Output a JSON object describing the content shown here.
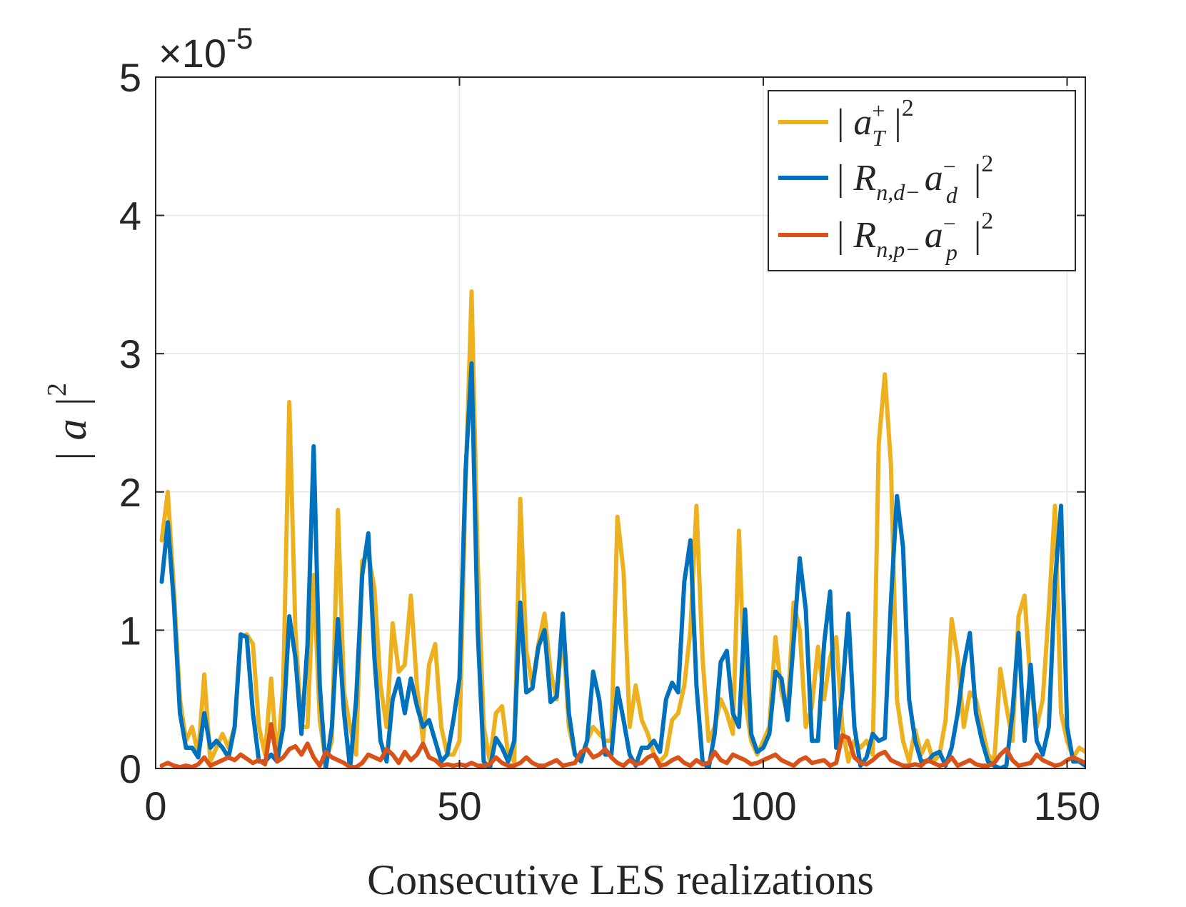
{
  "chart_data": {
    "type": "line",
    "title": "",
    "xlabel": "Consecutive LES realizations",
    "ylabel": "| a |",
    "ylabel_exponent": "2",
    "y_multiplier": "×10",
    "y_multiplier_exponent": "-5",
    "xlim": [
      0,
      153
    ],
    "ylim": [
      0,
      5
    ],
    "xticks": [
      0,
      50,
      100,
      150
    ],
    "xtick_labels": [
      "0",
      "50",
      "100",
      "150"
    ],
    "yticks": [
      0,
      1,
      2,
      3,
      4,
      5
    ],
    "ytick_labels": [
      "0",
      "1",
      "2",
      "3",
      "4",
      "5"
    ],
    "grid": true,
    "legend_position": "top-right",
    "series": [
      {
        "name": "| a_T^+ |^2",
        "legend": {
          "base": "a",
          "sub": "T",
          "sup": "+"
        },
        "color": "#EDB120",
        "x": [
          1,
          2,
          3,
          4,
          5,
          6,
          7,
          8,
          9,
          10,
          11,
          12,
          13,
          14,
          15,
          16,
          17,
          18,
          19,
          20,
          21,
          22,
          23,
          24,
          25,
          26,
          27,
          28,
          29,
          30,
          31,
          32,
          33,
          34,
          35,
          36,
          37,
          38,
          39,
          40,
          41,
          42,
          43,
          44,
          45,
          46,
          47,
          48,
          49,
          50,
          51,
          52,
          53,
          54,
          55,
          56,
          57,
          58,
          59,
          60,
          61,
          62,
          63,
          64,
          65,
          66,
          67,
          68,
          69,
          70,
          71,
          72,
          73,
          74,
          75,
          76,
          77,
          78,
          79,
          80,
          81,
          82,
          83,
          84,
          85,
          86,
          87,
          88,
          89,
          90,
          91,
          92,
          93,
          94,
          95,
          96,
          97,
          98,
          99,
          100,
          101,
          102,
          103,
          104,
          105,
          106,
          107,
          108,
          109,
          110,
          111,
          112,
          113,
          114,
          115,
          116,
          117,
          118,
          119,
          120,
          121,
          122,
          123,
          124,
          125,
          126,
          127,
          128,
          129,
          130,
          131,
          132,
          133,
          134,
          135,
          136,
          137,
          138,
          139,
          140,
          141,
          142,
          143,
          144,
          145,
          146,
          147,
          148,
          149,
          150,
          151,
          152,
          153
        ],
        "values": [
          1.65,
          2.0,
          1.3,
          0.5,
          0.2,
          0.3,
          0.1,
          0.68,
          0.05,
          0.15,
          0.25,
          0.15,
          0.3,
          0.95,
          0.97,
          0.9,
          0.3,
          0.1,
          0.65,
          0.05,
          0.6,
          2.65,
          1.0,
          0.3,
          0.3,
          1.4,
          0.35,
          0.05,
          0.2,
          1.87,
          0.55,
          0.3,
          0.1,
          1.5,
          1.55,
          1.3,
          0.6,
          0.3,
          1.05,
          0.7,
          0.75,
          1.25,
          0.6,
          0.2,
          0.75,
          0.9,
          0.3,
          0.1,
          0.1,
          0.2,
          2.05,
          3.45,
          1.5,
          0.3,
          0.05,
          0.4,
          0.45,
          0.1,
          0.05,
          1.95,
          0.85,
          0.6,
          0.9,
          1.12,
          0.7,
          0.5,
          1.0,
          0.3,
          0.1,
          0.08,
          0.2,
          0.3,
          0.25,
          0.2,
          0.2,
          1.82,
          1.42,
          0.3,
          0.6,
          0.35,
          0.25,
          0.1,
          0.05,
          0.1,
          0.35,
          0.4,
          0.6,
          1.0,
          1.9,
          0.8,
          0.2,
          0.3,
          0.5,
          0.4,
          0.25,
          1.72,
          0.5,
          0.2,
          0.1,
          0.2,
          0.3,
          0.95,
          0.55,
          0.4,
          1.2,
          1.0,
          0.3,
          0.45,
          0.88,
          0.5,
          0.8,
          0.95,
          0.3,
          0.05,
          0.2,
          0.15,
          0.2,
          0.1,
          2.35,
          2.85,
          2.2,
          0.5,
          0.2,
          0.05,
          0.28,
          0.1,
          0.2,
          0.05,
          0.1,
          0.35,
          1.08,
          0.8,
          0.3,
          0.55,
          0.5,
          0.3,
          0.1,
          0.05,
          0.72,
          0.45,
          0.2,
          1.1,
          1.25,
          0.6,
          0.3,
          0.5,
          1.15,
          1.9,
          0.4,
          0.2,
          0.08,
          0.15,
          0.12
        ],
        "line_width": 6
      },
      {
        "name": "| R_{n,d-} a_d^- |^2",
        "legend": {
          "base": "R",
          "sub": "n,d−",
          "base2": "a",
          "sub2": "d",
          "sup2": "−"
        },
        "color": "#0072BD",
        "x": [
          1,
          2,
          3,
          4,
          5,
          6,
          7,
          8,
          9,
          10,
          11,
          12,
          13,
          14,
          15,
          16,
          17,
          18,
          19,
          20,
          21,
          22,
          23,
          24,
          25,
          26,
          27,
          28,
          29,
          30,
          31,
          32,
          33,
          34,
          35,
          36,
          37,
          38,
          39,
          40,
          41,
          42,
          43,
          44,
          45,
          46,
          47,
          48,
          49,
          50,
          51,
          52,
          53,
          54,
          55,
          56,
          57,
          58,
          59,
          60,
          61,
          62,
          63,
          64,
          65,
          66,
          67,
          68,
          69,
          70,
          71,
          72,
          73,
          74,
          75,
          76,
          77,
          78,
          79,
          80,
          81,
          82,
          83,
          84,
          85,
          86,
          87,
          88,
          89,
          90,
          91,
          92,
          93,
          94,
          95,
          96,
          97,
          98,
          99,
          100,
          101,
          102,
          103,
          104,
          105,
          106,
          107,
          108,
          109,
          110,
          111,
          112,
          113,
          114,
          115,
          116,
          117,
          118,
          119,
          120,
          121,
          122,
          123,
          124,
          125,
          126,
          127,
          128,
          129,
          130,
          131,
          132,
          133,
          134,
          135,
          136,
          137,
          138,
          139,
          140,
          141,
          142,
          143,
          144,
          145,
          146,
          147,
          148,
          149,
          150,
          151,
          152,
          153
        ],
        "values": [
          1.35,
          1.78,
          1.2,
          0.4,
          0.15,
          0.15,
          0.08,
          0.4,
          0.15,
          0.2,
          0.15,
          0.08,
          0.3,
          0.97,
          0.95,
          0.4,
          0.05,
          0.05,
          0.1,
          0.05,
          0.3,
          1.1,
          0.8,
          0.25,
          0.9,
          2.33,
          0.6,
          0.0,
          0.3,
          1.08,
          0.4,
          0.0,
          0.5,
          1.4,
          1.7,
          0.8,
          0.2,
          0.05,
          0.5,
          0.65,
          0.4,
          0.65,
          0.45,
          0.3,
          0.35,
          0.2,
          0.05,
          0.1,
          0.35,
          0.65,
          2.15,
          2.93,
          1.0,
          0.05,
          0.0,
          0.22,
          0.15,
          0.05,
          0.2,
          1.2,
          0.55,
          0.58,
          0.88,
          1.0,
          0.48,
          0.52,
          1.12,
          0.4,
          0.1,
          0.05,
          0.2,
          0.7,
          0.5,
          0.1,
          0.1,
          0.58,
          0.35,
          0.1,
          0.02,
          0.15,
          0.15,
          0.2,
          0.12,
          0.5,
          0.62,
          0.55,
          1.35,
          1.65,
          0.6,
          0.05,
          0.0,
          0.25,
          0.77,
          0.85,
          0.4,
          0.3,
          1.15,
          0.25,
          0.12,
          0.15,
          0.25,
          0.7,
          0.65,
          0.35,
          0.92,
          1.52,
          1.15,
          0.2,
          0.2,
          0.9,
          1.28,
          0.15,
          0.55,
          1.12,
          0.3,
          0.02,
          0.08,
          0.25,
          0.2,
          0.22,
          1.2,
          1.97,
          1.6,
          0.5,
          0.2,
          0.05,
          0.05,
          0.1,
          0.12,
          0.02,
          0.15,
          0.4,
          0.75,
          0.98,
          0.4,
          0.2,
          0.05,
          0.02,
          0.0,
          0.02,
          0.4,
          0.98,
          0.2,
          0.75,
          0.2,
          0.1,
          0.3,
          1.35,
          1.9,
          0.3,
          0.05,
          0.05,
          0.02
        ],
        "line_width": 6
      },
      {
        "name": "| R_{n,p-} a_p^- |^2",
        "legend": {
          "base": "R",
          "sub": "n,p−",
          "base2": "a",
          "sub2": "p",
          "sup2": "−"
        },
        "color": "#D95319",
        "x": [
          1,
          2,
          3,
          4,
          5,
          6,
          7,
          8,
          9,
          10,
          11,
          12,
          13,
          14,
          15,
          16,
          17,
          18,
          19,
          20,
          21,
          22,
          23,
          24,
          25,
          26,
          27,
          28,
          29,
          30,
          31,
          32,
          33,
          34,
          35,
          36,
          37,
          38,
          39,
          40,
          41,
          42,
          43,
          44,
          45,
          46,
          47,
          48,
          49,
          50,
          51,
          52,
          53,
          54,
          55,
          56,
          57,
          58,
          59,
          60,
          61,
          62,
          63,
          64,
          65,
          66,
          67,
          68,
          69,
          70,
          71,
          72,
          73,
          74,
          75,
          76,
          77,
          78,
          79,
          80,
          81,
          82,
          83,
          84,
          85,
          86,
          87,
          88,
          89,
          90,
          91,
          92,
          93,
          94,
          95,
          96,
          97,
          98,
          99,
          100,
          101,
          102,
          103,
          104,
          105,
          106,
          107,
          108,
          109,
          110,
          111,
          112,
          113,
          114,
          115,
          116,
          117,
          118,
          119,
          120,
          121,
          122,
          123,
          124,
          125,
          126,
          127,
          128,
          129,
          130,
          131,
          132,
          133,
          134,
          135,
          136,
          137,
          138,
          139,
          140,
          141,
          142,
          143,
          144,
          145,
          146,
          147,
          148,
          149,
          150,
          151,
          152,
          153
        ],
        "values": [
          0.02,
          0.04,
          0.02,
          0.01,
          0.02,
          0.01,
          0.03,
          0.08,
          0.02,
          0.04,
          0.06,
          0.08,
          0.06,
          0.1,
          0.07,
          0.04,
          0.06,
          0.03,
          0.32,
          0.05,
          0.08,
          0.14,
          0.16,
          0.1,
          0.18,
          0.08,
          0.02,
          0.12,
          0.08,
          0.06,
          0.04,
          0.01,
          0.01,
          0.04,
          0.1,
          0.08,
          0.06,
          0.14,
          0.1,
          0.04,
          0.12,
          0.06,
          0.1,
          0.18,
          0.08,
          0.06,
          0.02,
          0.03,
          0.02,
          0.03,
          0.02,
          0.04,
          0.02,
          0.02,
          0.03,
          0.08,
          0.04,
          0.02,
          0.02,
          0.04,
          0.08,
          0.04,
          0.02,
          0.02,
          0.04,
          0.06,
          0.02,
          0.03,
          0.04,
          0.12,
          0.14,
          0.08,
          0.1,
          0.14,
          0.08,
          0.04,
          0.02,
          0.06,
          0.03,
          0.04,
          0.08,
          0.1,
          0.02,
          0.03,
          0.06,
          0.08,
          0.04,
          0.02,
          0.06,
          0.03,
          0.04,
          0.12,
          0.06,
          0.04,
          0.1,
          0.08,
          0.06,
          0.03,
          0.04,
          0.06,
          0.08,
          0.1,
          0.06,
          0.04,
          0.02,
          0.06,
          0.08,
          0.04,
          0.05,
          0.06,
          0.02,
          0.04,
          0.24,
          0.22,
          0.08,
          0.04,
          0.03,
          0.06,
          0.1,
          0.12,
          0.06,
          0.04,
          0.02,
          0.02,
          0.03,
          0.02,
          0.06,
          0.04,
          0.02,
          0.03,
          0.08,
          0.02,
          0.04,
          0.06,
          0.03,
          0.02,
          0.02,
          0.04,
          0.1,
          0.14,
          0.06,
          0.02,
          0.03,
          0.04,
          0.1,
          0.06,
          0.04,
          0.02,
          0.03,
          0.06,
          0.08,
          0.06,
          0.04
        ],
        "line_width": 6
      }
    ]
  }
}
